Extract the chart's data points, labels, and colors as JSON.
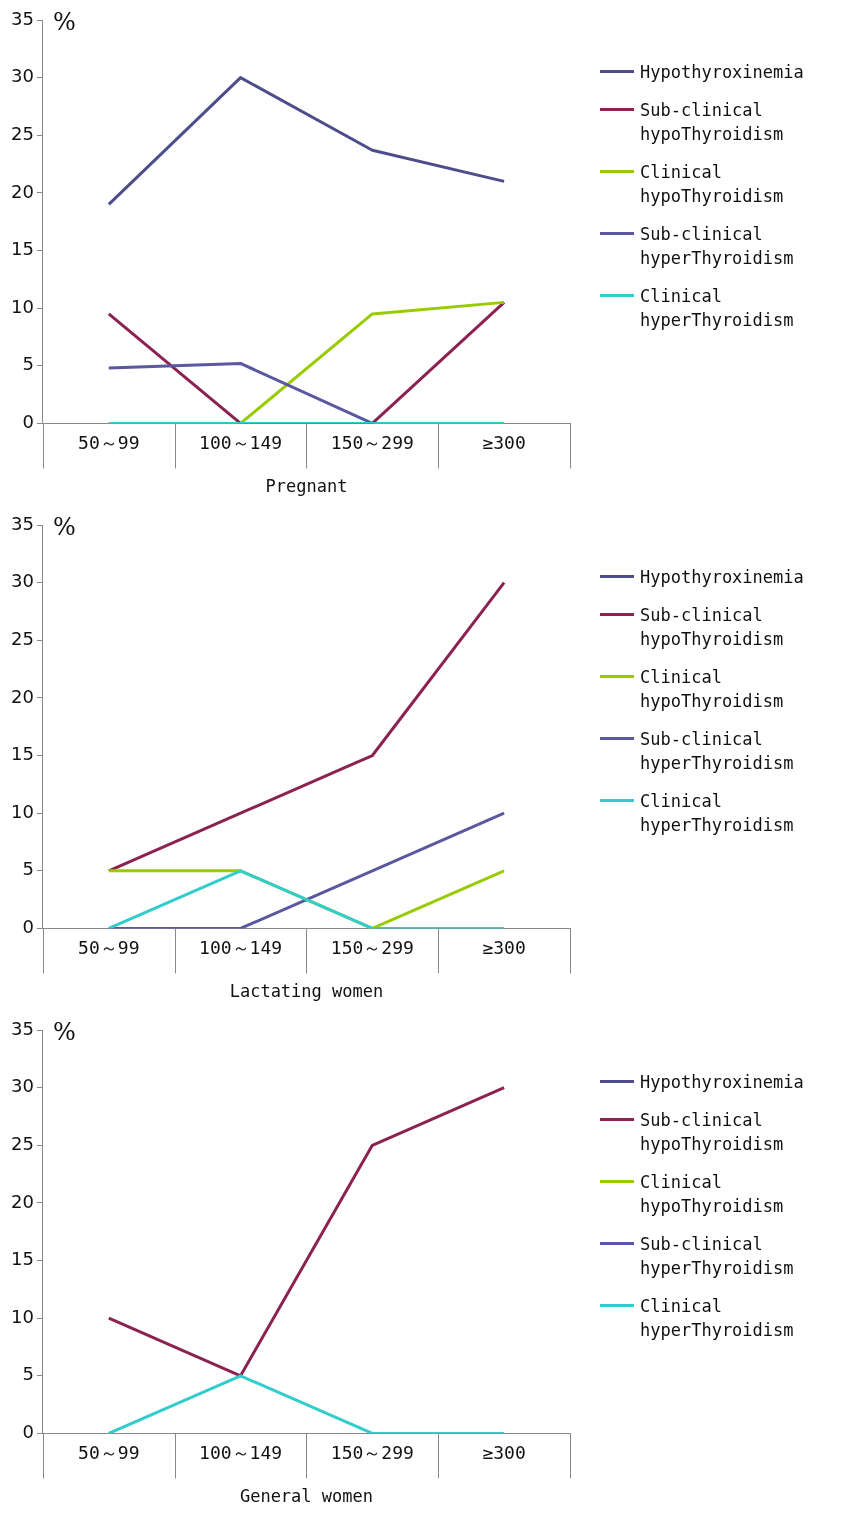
{
  "chart_data": [
    {
      "type": "line",
      "xlabel": "Pregnant",
      "ylabel": "%",
      "categories": [
        "50～99",
        "100～149",
        "150～299",
        "≥300"
      ],
      "ylim": [
        0,
        35
      ],
      "yticks": [
        0,
        5,
        10,
        15,
        20,
        25,
        30,
        35
      ],
      "grid": false,
      "legend": "right",
      "marker": "none",
      "line_style": "solid",
      "series": [
        {
          "name": "Hypothyroxinemia",
          "color": "#4d4d8c",
          "values": [
            19,
            30,
            23.7,
            21
          ]
        },
        {
          "name": "Sub-clinical hypoThyroidism",
          "color": "#8b2252",
          "values": [
            9.5,
            0,
            0,
            10.5
          ]
        },
        {
          "name": "Clinical hypoThyroidism",
          "color": "#99cc00",
          "values": [
            null,
            0,
            9.5,
            10.5
          ]
        },
        {
          "name": "Sub-clinical hyperThyroidism",
          "color": "#5a58a0",
          "values": [
            4.8,
            5.2,
            0,
            null
          ]
        },
        {
          "name": "Clinical hyperThyroidism",
          "color": "#33cccc",
          "values": [
            0,
            0,
            0,
            0
          ]
        }
      ]
    },
    {
      "type": "line",
      "xlabel": "Lactating women",
      "ylabel": "%",
      "categories": [
        "50～99",
        "100～149",
        "150～299",
        "≥300"
      ],
      "ylim": [
        0,
        35
      ],
      "yticks": [
        0,
        5,
        10,
        15,
        20,
        25,
        30,
        35
      ],
      "grid": false,
      "legend": "right",
      "marker": "none",
      "line_style": "solid",
      "series": [
        {
          "name": "Hypothyroxinemia",
          "color": "#4d4d8c",
          "values": [
            null,
            null,
            null,
            null
          ]
        },
        {
          "name": "Sub-clinical hypoThyroidism",
          "color": "#8b2252",
          "values": [
            5,
            10,
            15,
            30
          ]
        },
        {
          "name": "Clinical hypoThyroidism",
          "color": "#99cc00",
          "values": [
            5,
            5,
            0,
            5
          ]
        },
        {
          "name": "Sub-clinical hyperThyroidism",
          "color": "#5a58a0",
          "values": [
            0,
            0,
            5,
            10
          ]
        },
        {
          "name": "Clinical hyperThyroidism",
          "color": "#33cccc",
          "values": [
            0,
            5,
            0,
            0
          ]
        }
      ]
    },
    {
      "type": "line",
      "xlabel": "General women",
      "ylabel": "%",
      "categories": [
        "50～99",
        "100～149",
        "150～299",
        "≥300"
      ],
      "ylim": [
        0,
        35
      ],
      "yticks": [
        0,
        5,
        10,
        15,
        20,
        25,
        30,
        35
      ],
      "grid": false,
      "legend": "right",
      "marker": "none",
      "line_style": "solid",
      "series": [
        {
          "name": "Hypothyroxinemia",
          "color": "#4d4d8c",
          "values": [
            null,
            null,
            null,
            null
          ]
        },
        {
          "name": "Sub-clinical hypoThyroidism",
          "color": "#8b2252",
          "values": [
            10,
            5,
            25,
            30
          ]
        },
        {
          "name": "Clinical hypoThyroidism",
          "color": "#99cc00",
          "values": [
            null,
            null,
            null,
            null
          ]
        },
        {
          "name": "Sub-clinical hyperThyroidism",
          "color": "#5a58a0",
          "values": [
            null,
            null,
            null,
            null
          ]
        },
        {
          "name": "Clinical hyperThyroidism",
          "color": "#33cccc",
          "values": [
            0,
            5,
            0,
            0
          ]
        }
      ]
    }
  ]
}
